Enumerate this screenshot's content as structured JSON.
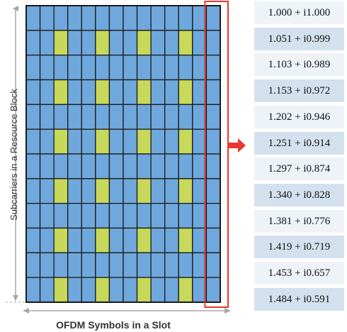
{
  "diagram": {
    "y_label": "Subcarriers in a Resource Block",
    "x_label": "OFDM Symbols in a Slot",
    "grid": {
      "rows": 12,
      "cols": 14,
      "pilot_rows": [
        1,
        3,
        5,
        7,
        9,
        11
      ],
      "pilot_cols": [
        2,
        5,
        8,
        11
      ],
      "highlighted_col": 13
    },
    "colors": {
      "cell": "#6fa8dc",
      "pilot": "#c7d85a",
      "grid_line": "#1a1a1a",
      "highlight": "#e8382f",
      "row_bg_light": "#eef3f8",
      "row_bg_dark": "#d3e1ee",
      "arrow": "#e8382f",
      "axis": "#a6a6a6"
    },
    "values": [
      "1.000 + i1.000",
      "1.051 + i0.999",
      "1.103 + i0.989",
      "1.153 + i0.972",
      "1.202 + i0.946",
      "1.251 + i0.914",
      "1.297 + i0.874",
      "1.340 + i0.828",
      "1.381 + i0.776",
      "1.419 + i0.719",
      "1.453 + i0.657",
      "1.484 + i0.591"
    ]
  }
}
